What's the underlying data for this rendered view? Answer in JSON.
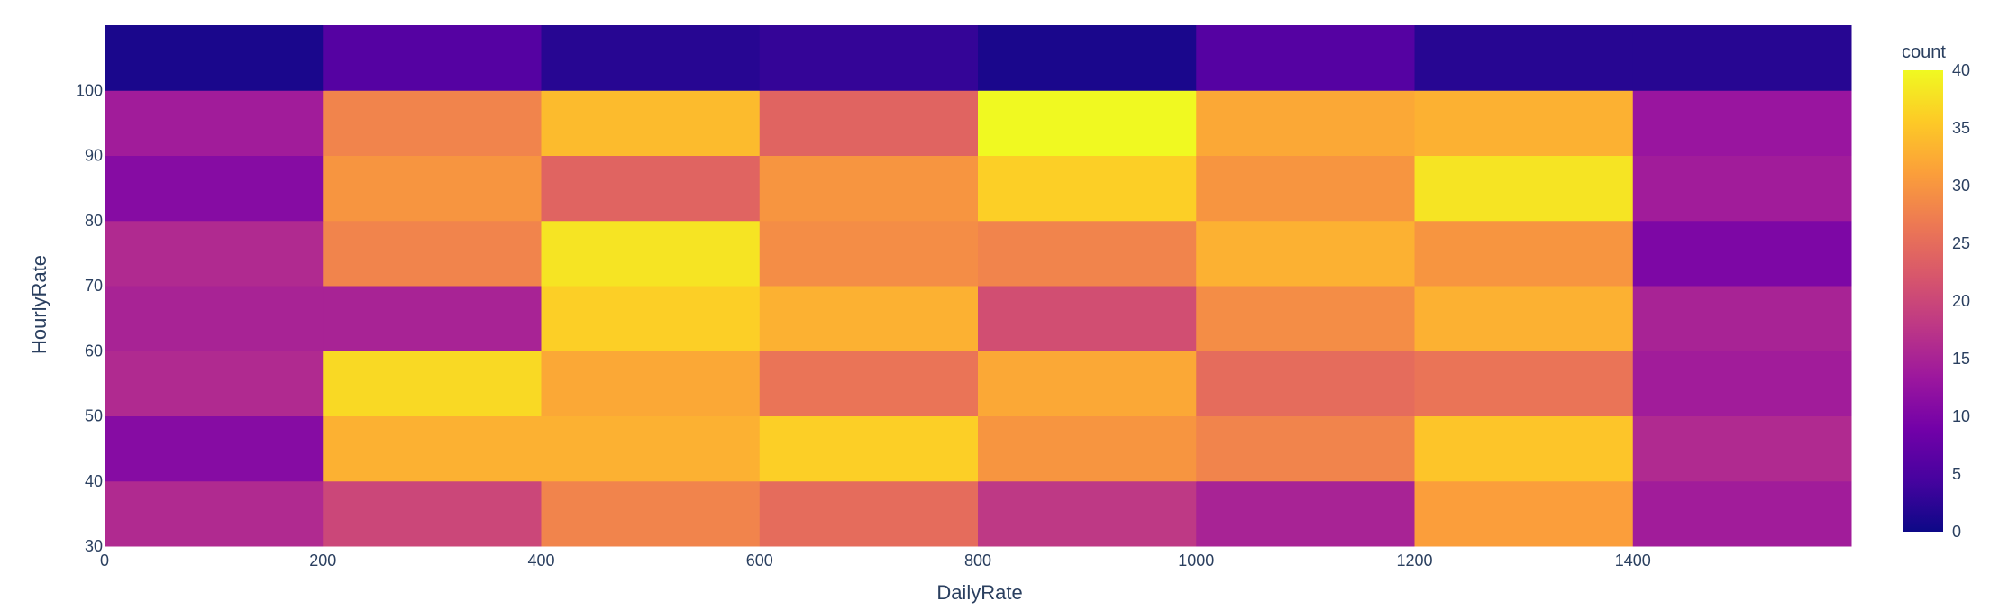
{
  "chart_data": {
    "type": "heatmap",
    "xlabel": "DailyRate",
    "ylabel": "HourlyRate",
    "colorbar_title": "count",
    "x_bins": [
      0,
      200,
      400,
      600,
      800,
      1000,
      1200,
      1400,
      1600
    ],
    "y_bins": [
      30,
      40,
      50,
      60,
      70,
      80,
      90,
      100,
      110
    ],
    "x_ticks": [
      0,
      200,
      400,
      600,
      800,
      1000,
      1200,
      1400
    ],
    "y_ticks": [
      30,
      40,
      50,
      60,
      70,
      80,
      90,
      100
    ],
    "xlim": [
      0,
      1600
    ],
    "ylim": [
      30,
      110
    ],
    "z_range": [
      0,
      40
    ],
    "colorbar_ticks": [
      0,
      5,
      10,
      15,
      20,
      25,
      30,
      35,
      40
    ],
    "colorscale": "Plasma",
    "z": [
      [
        16,
        20,
        28,
        25,
        18,
        15,
        31,
        14
      ],
      [
        11,
        33,
        33,
        36,
        30,
        28,
        35,
        16
      ],
      [
        16,
        37,
        32,
        26,
        32,
        25,
        26,
        14
      ],
      [
        15,
        15,
        36,
        33,
        21,
        29,
        33,
        15
      ],
      [
        16,
        28,
        38,
        29,
        28,
        33,
        30,
        10
      ],
      [
        11,
        30,
        24,
        30,
        36,
        30,
        38,
        14
      ],
      [
        14,
        28,
        34,
        24,
        40,
        32,
        33,
        13
      ],
      [
        1,
        6,
        2,
        3,
        1,
        6,
        2,
        2
      ]
    ]
  }
}
